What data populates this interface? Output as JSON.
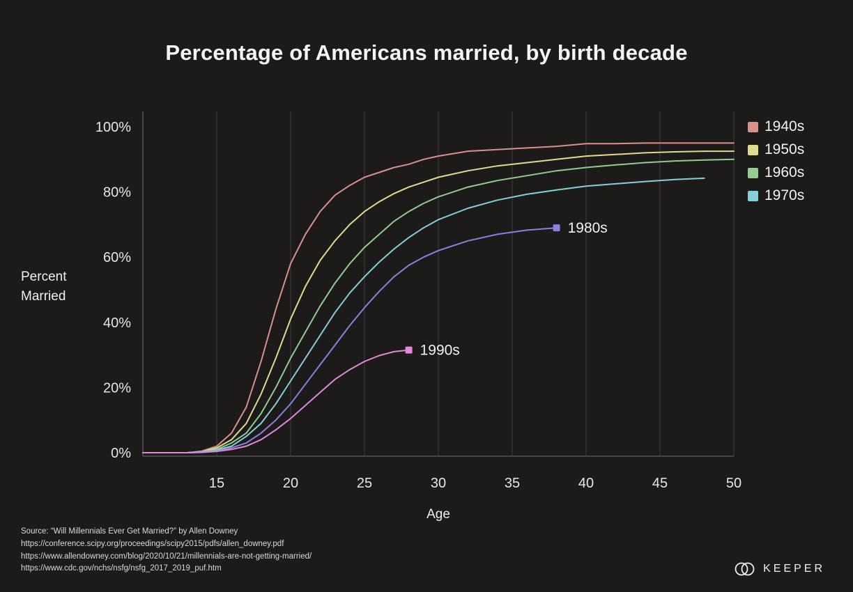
{
  "title": "Percentage of Americans married, by birth decade",
  "ylabel": {
    "line1": "Percent",
    "line2": "Married"
  },
  "xlabel": "Age",
  "source": {
    "lines": [
      "Source: “Will Millennials Ever Get Married?” by Allen Downey",
      "https://conference.scipy.org/proceedings/scipy2015/pdfs/allen_downey.pdf",
      "https://www.allendowney.com/blog/2020/10/21/millennials-are-not-getting-married/",
      "https://www.cdc.gov/nchs/nsfg/nsfg_2017_2019_puf.htm"
    ]
  },
  "brand": {
    "name": "KEEPER",
    "icon": "two-overlapping-circles"
  },
  "colors": {
    "background": "#1d1b1a",
    "gridline": "#3a3a3a",
    "axis": "#6f6f6f",
    "tick_text": "#e6e6e6",
    "inline_label": "#f2f2f2"
  },
  "chart_data": {
    "type": "line",
    "title": "Percentage of Americans married, by birth decade",
    "xlabel": "Age",
    "ylabel": "Percent Married",
    "xlim": [
      10,
      50
    ],
    "ylim": [
      0,
      100
    ],
    "x_ticks": [
      15,
      20,
      25,
      30,
      35,
      40,
      45,
      50
    ],
    "y_ticks": [
      0,
      20,
      40,
      60,
      80,
      100
    ],
    "y_tick_labels": [
      "0%",
      "20%",
      "40%",
      "60%",
      "80%",
      "100%"
    ],
    "grid": "vertical-only",
    "legend_position": "top-right",
    "series": [
      {
        "name": "1940s",
        "color": "#d9918d",
        "legend": true,
        "end_marker": false,
        "x": [
          10,
          13,
          14,
          15,
          16,
          17,
          18,
          19,
          20,
          21,
          22,
          23,
          24,
          25,
          26,
          27,
          28,
          29,
          30,
          32,
          34,
          36,
          38,
          40,
          42,
          44,
          46,
          48,
          50
        ],
        "y": [
          0,
          0,
          0.5,
          2,
          6,
          14,
          28,
          44,
          58,
          67,
          74,
          79,
          82,
          84.5,
          86,
          87.5,
          88.5,
          90,
          91,
          92.5,
          93,
          93.5,
          94,
          94.8,
          94.8,
          95,
          95,
          95,
          95
        ]
      },
      {
        "name": "1950s",
        "color": "#dedc8f",
        "legend": true,
        "end_marker": false,
        "x": [
          10,
          13,
          14,
          15,
          16,
          17,
          18,
          19,
          20,
          21,
          22,
          23,
          24,
          25,
          26,
          27,
          28,
          29,
          30,
          32,
          34,
          36,
          38,
          40,
          42,
          44,
          46,
          48,
          50
        ],
        "y": [
          0,
          0,
          0.3,
          1.5,
          4,
          9,
          18,
          29,
          41,
          51,
          59,
          65,
          70,
          74,
          77,
          79.5,
          81.5,
          83,
          84.5,
          86.5,
          88,
          89,
          90,
          91,
          91.5,
          92,
          92.3,
          92.5,
          92.5
        ]
      },
      {
        "name": "1960s",
        "color": "#8fce8f",
        "legend": true,
        "end_marker": false,
        "x": [
          10,
          13,
          14,
          15,
          16,
          17,
          18,
          19,
          20,
          21,
          22,
          23,
          24,
          25,
          26,
          27,
          28,
          29,
          30,
          32,
          34,
          36,
          38,
          40,
          42,
          44,
          46,
          48,
          50
        ],
        "y": [
          0,
          0,
          0.3,
          1,
          3,
          6,
          12,
          20,
          29,
          37,
          45,
          52,
          58,
          63,
          67,
          71,
          74,
          76.5,
          78.5,
          81.5,
          83.5,
          85,
          86.5,
          87.5,
          88.3,
          89,
          89.5,
          89.8,
          90
        ]
      },
      {
        "name": "1970s",
        "color": "#85cfdb",
        "legend": true,
        "end_marker": false,
        "x": [
          10,
          13,
          14,
          15,
          16,
          17,
          18,
          19,
          20,
          21,
          22,
          23,
          24,
          25,
          26,
          27,
          28,
          29,
          30,
          32,
          34,
          36,
          38,
          40,
          42,
          44,
          46,
          48
        ],
        "y": [
          0,
          0,
          0.2,
          0.8,
          2,
          5,
          9,
          15,
          22,
          29,
          36,
          43,
          49,
          54,
          58.5,
          62.5,
          66,
          69,
          71.5,
          75,
          77.5,
          79.3,
          80.6,
          81.8,
          82.5,
          83.2,
          83.8,
          84.2
        ]
      },
      {
        "name": "1980s",
        "color": "#8b7fe0",
        "legend": false,
        "end_marker": true,
        "x": [
          10,
          13,
          14,
          15,
          16,
          17,
          18,
          19,
          20,
          21,
          22,
          23,
          24,
          25,
          26,
          27,
          28,
          29,
          30,
          32,
          34,
          36,
          38
        ],
        "y": [
          0,
          0,
          0.2,
          0.5,
          1.5,
          3,
          6,
          10,
          15,
          21,
          27,
          33,
          39,
          44.5,
          49.5,
          54,
          57.5,
          60,
          62,
          65,
          67,
          68.3,
          69
        ]
      },
      {
        "name": "1990s",
        "color": "#e289de",
        "legend": false,
        "end_marker": true,
        "x": [
          10,
          13,
          14,
          15,
          16,
          17,
          18,
          19,
          20,
          21,
          22,
          23,
          24,
          25,
          26,
          27,
          28
        ],
        "y": [
          0,
          0,
          0.1,
          0.4,
          1,
          2,
          4,
          7,
          10.5,
          14.5,
          18.5,
          22.5,
          25.5,
          28,
          29.8,
          31,
          31.5
        ]
      }
    ]
  }
}
